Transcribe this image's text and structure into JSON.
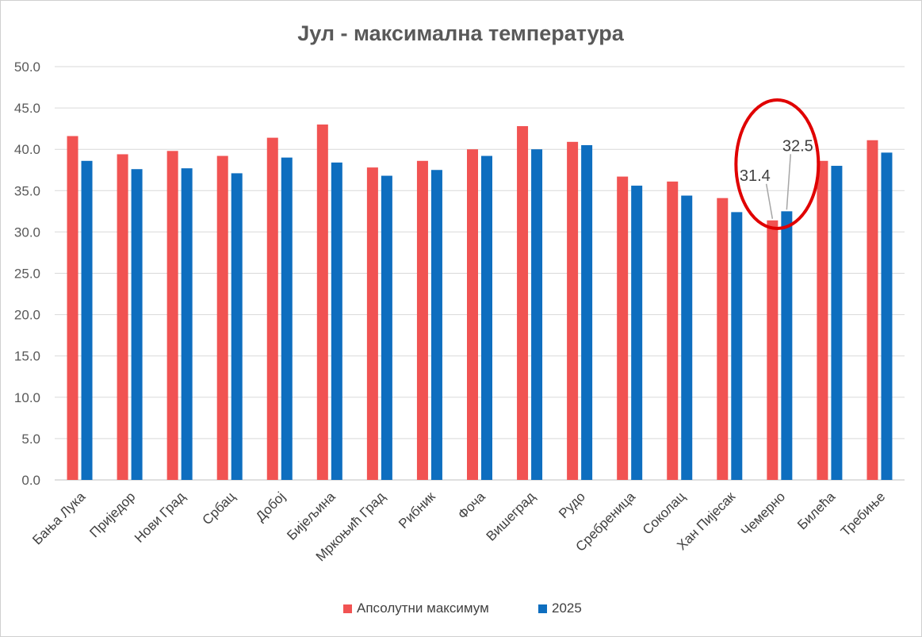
{
  "chart_data": {
    "type": "bar",
    "title": "Јул - максимална температура",
    "categories": [
      "Бања Лука",
      "Приједор",
      "Нови Град",
      "Србац",
      "Добој",
      "Бијељина",
      "Мркоњић Град",
      "Рибник",
      "Фоча",
      "Вишеград",
      "Рудо",
      "Сребреница",
      "Соколац",
      "Хан Пијесак",
      "Чемерно",
      "Билећа",
      "Требиње"
    ],
    "series": [
      {
        "name": "Апсолутни максимум",
        "color": "#f15352",
        "values": [
          41.6,
          39.4,
          39.8,
          39.2,
          41.4,
          43.0,
          37.8,
          38.6,
          40.0,
          42.8,
          40.9,
          36.7,
          36.1,
          34.1,
          31.4,
          38.6,
          41.1
        ]
      },
      {
        "name": "2025",
        "color": "#0e6ebf",
        "values": [
          38.6,
          37.6,
          37.7,
          37.1,
          39.0,
          38.4,
          36.8,
          37.5,
          39.2,
          40.0,
          40.5,
          35.6,
          34.4,
          32.4,
          32.5,
          38.0,
          39.6
        ]
      }
    ],
    "ylim": [
      0,
      50
    ],
    "yticks": [
      "0.0",
      "5.0",
      "10.0",
      "15.0",
      "20.0",
      "25.0",
      "30.0",
      "35.0",
      "40.0",
      "45.0",
      "50.0"
    ],
    "grid": true,
    "legend_position": "bottom",
    "annotations": [
      {
        "category": "Чемерно",
        "series": "Апсолутни максимум",
        "label": "31.4"
      },
      {
        "category": "Чемерно",
        "series": "2025",
        "label": "32.5"
      }
    ],
    "highlight": {
      "category": "Чемерно",
      "shape": "ellipse",
      "color": "#e00000"
    }
  }
}
